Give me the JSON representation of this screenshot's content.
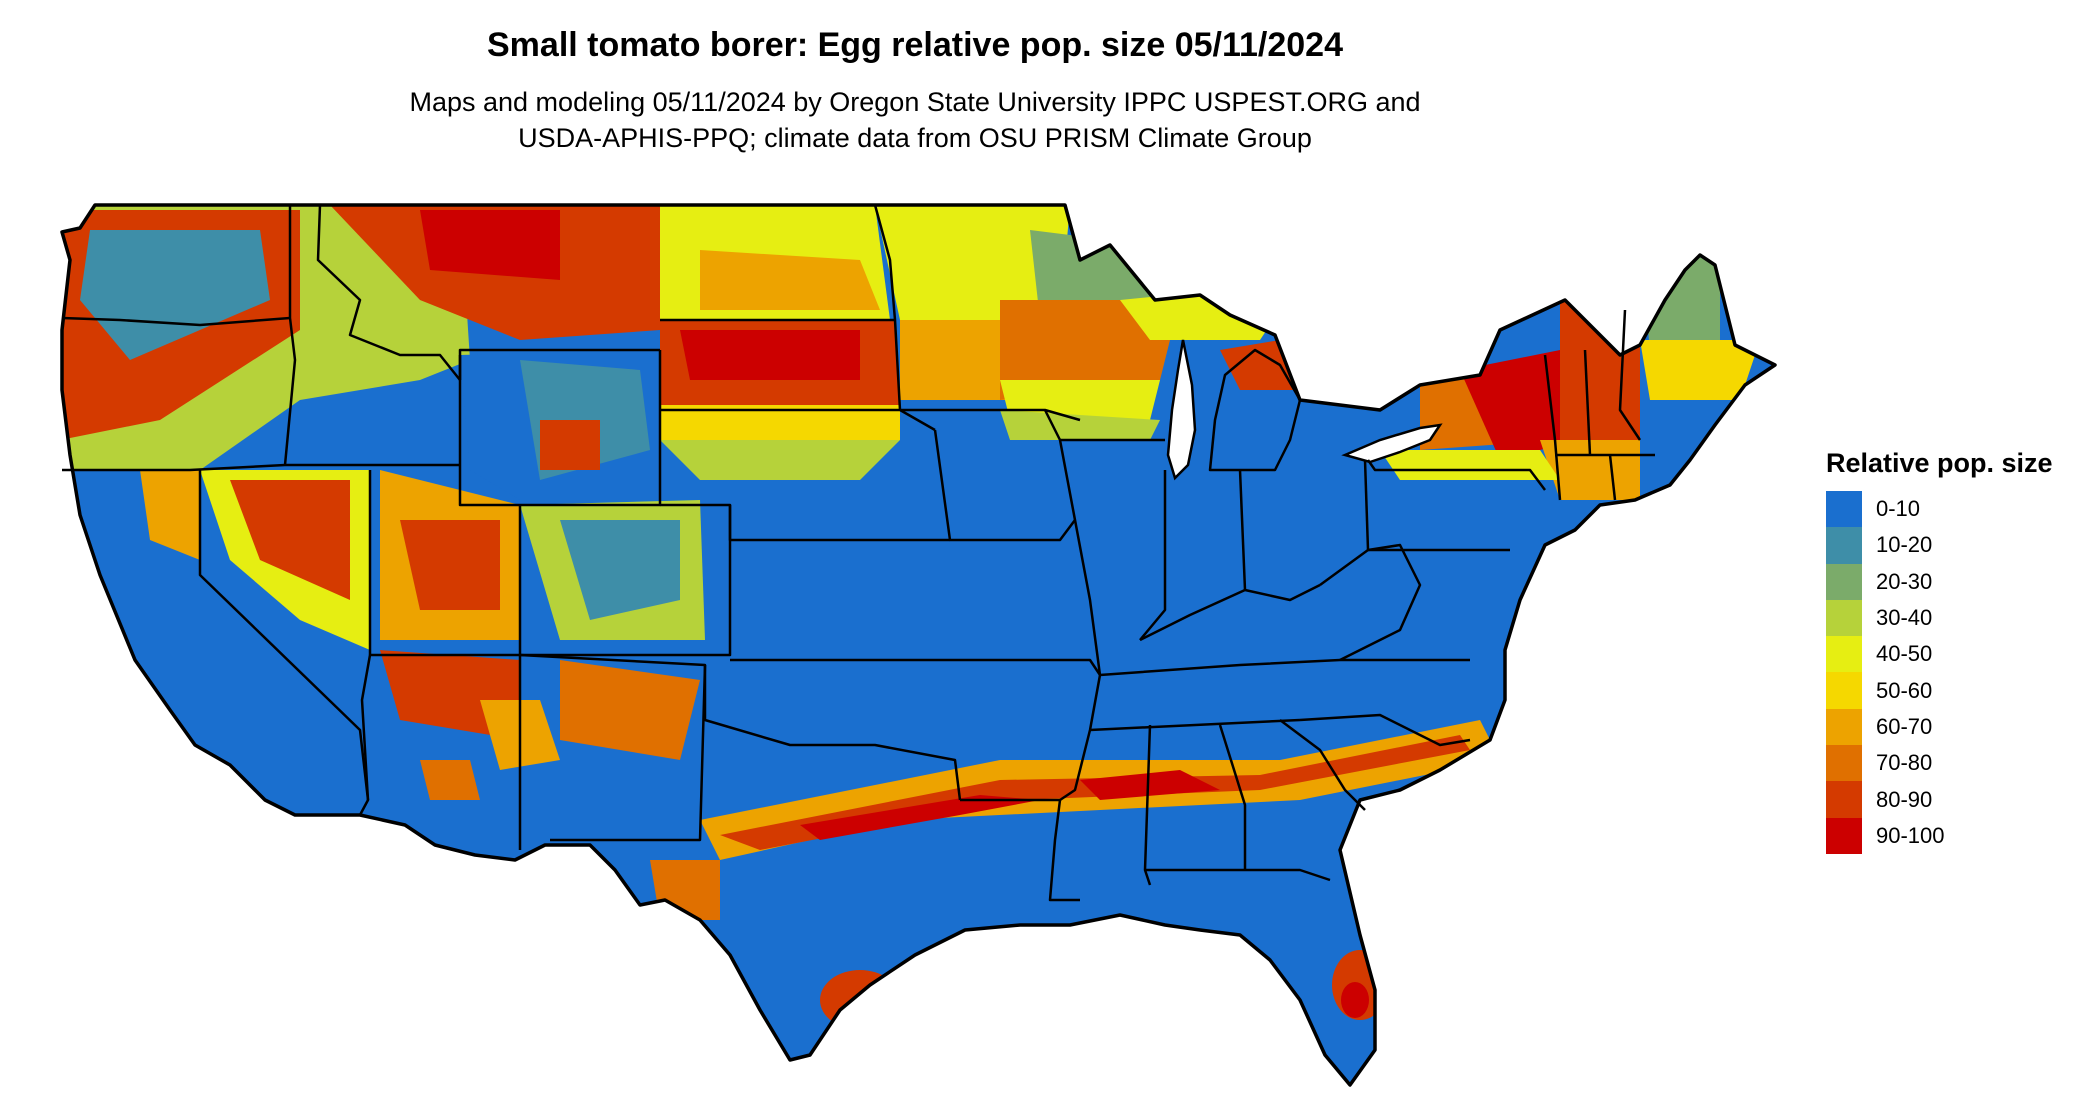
{
  "title": "Small tomato borer: Egg relative pop. size 05/11/2024",
  "subtitle": [
    "Maps and modeling 05/11/2024 by Oregon State University IPPC USPEST.ORG and",
    "USDA-APHIS-PPQ; climate data from OSU PRISM Climate Group"
  ],
  "legend": {
    "title": "Relative pop. size",
    "items": [
      {
        "label": "0-10",
        "color": "#1a6fcf"
      },
      {
        "label": "10-20",
        "color": "#3e8ea8"
      },
      {
        "label": "20-30",
        "color": "#7bab6a"
      },
      {
        "label": "30-40",
        "color": "#b6d23a"
      },
      {
        "label": "40-50",
        "color": "#e6ee12"
      },
      {
        "label": "50-60",
        "color": "#f5d800"
      },
      {
        "label": "60-70",
        "color": "#eda300"
      },
      {
        "label": "70-80",
        "color": "#e07000"
      },
      {
        "label": "80-90",
        "color": "#d43a00"
      },
      {
        "label": "90-100",
        "color": "#cc0000"
      }
    ]
  },
  "map": {
    "region": "contiguous-united-states",
    "boundaries": "state-outlines",
    "base_color": "#1a6fcf"
  }
}
